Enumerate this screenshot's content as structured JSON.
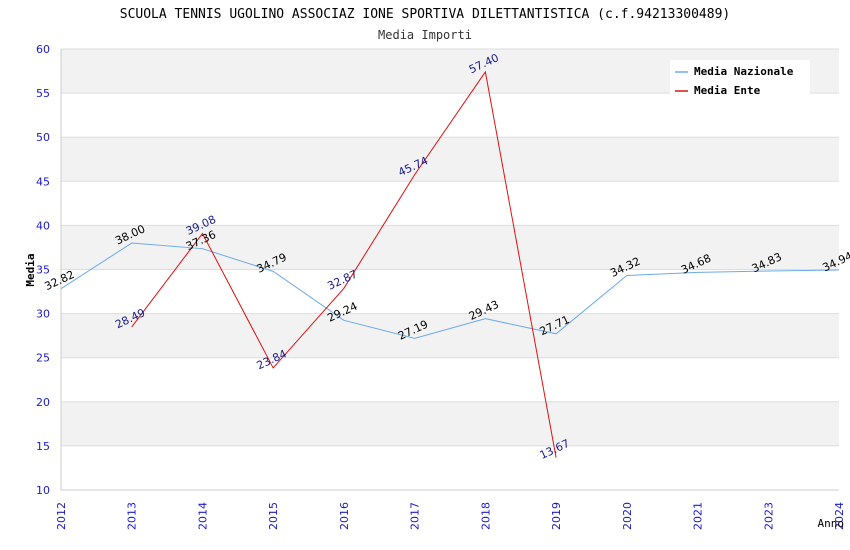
{
  "chart_data": {
    "type": "line",
    "title": "SCUOLA TENNIS UGOLINO ASSOCIAZ IONE SPORTIVA DILETTANTISTICA (c.f.94213300489)",
    "subtitle": "Media Importi",
    "xlabel": "Anno",
    "ylabel": "Media",
    "ylim": [
      10,
      60
    ],
    "yticks": [
      "10",
      "15",
      "20",
      "25",
      "30",
      "35",
      "40",
      "45",
      "50",
      "55",
      "60"
    ],
    "categories": [
      "2012",
      "2013",
      "2014",
      "2015",
      "2016",
      "2017",
      "2018",
      "2019",
      "2020",
      "2021",
      "2023",
      "2024"
    ],
    "series": [
      {
        "name": "Media Nazionale",
        "color": "#6aaaea",
        "label_color": "#000000",
        "values": [
          32.82,
          38.0,
          37.36,
          34.79,
          29.24,
          27.19,
          29.43,
          27.71,
          34.32,
          34.68,
          34.83,
          34.94
        ],
        "labels": [
          "32.82",
          "38.00",
          "37.36",
          "34.79",
          "29.24",
          "27.19",
          "29.43",
          "27.71",
          "34.32",
          "34.68",
          "34.83",
          "34.94"
        ]
      },
      {
        "name": "Media Ente",
        "color": "#dd1111",
        "label_color": "#1a1a8a",
        "values": [
          null,
          28.49,
          39.08,
          23.84,
          32.87,
          45.74,
          57.4,
          13.67,
          null,
          null,
          null,
          null
        ],
        "labels": [
          null,
          "28.49",
          "39.08",
          "23.84",
          "32.87",
          "45.74",
          "57.40",
          "13.67",
          null,
          null,
          null,
          null
        ]
      }
    ],
    "legend_position": "top-right",
    "grid": true,
    "band_color": "#f2f2f2",
    "grid_color": "#dddddd",
    "axis_tick_color": "#1a1acc"
  }
}
